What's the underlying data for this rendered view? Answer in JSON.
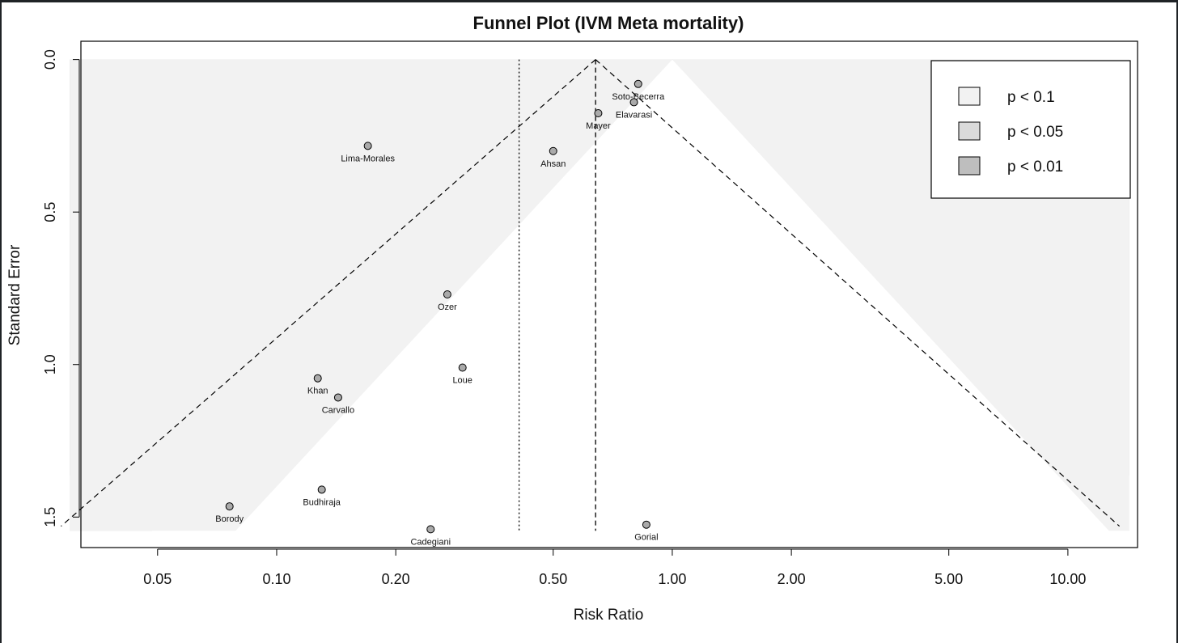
{
  "chart_data": {
    "type": "scatter",
    "title": "Funnel Plot (IVM Meta mortality)",
    "xlabel": "Risk Ratio",
    "ylabel": "Standard Error",
    "x_scale": "log",
    "xlim": [
      0.032,
      15.0
    ],
    "ylim": [
      1.6,
      -0.06
    ],
    "x_ticks": [
      0.05,
      0.1,
      0.2,
      0.5,
      1.0,
      2.0,
      5.0,
      10.0
    ],
    "x_tick_labels": [
      "0.05",
      "0.10",
      "0.20",
      "0.50",
      "1.00",
      "2.00",
      "5.00",
      "10.00"
    ],
    "y_ticks": [
      0.0,
      0.5,
      1.0,
      1.5
    ],
    "y_tick_labels": [
      "0.0",
      "0.5",
      "1.0",
      "1.5"
    ],
    "contour_reference": 1.0,
    "contour_se_max": 1.545,
    "contour_x_range": [
      0.03,
      14.3
    ],
    "pooled_estimate": 0.64,
    "null_line_dotted": 0.41,
    "funnel_x_range": [
      0.0285,
      13.5
    ],
    "funnel_se_max": 1.53,
    "contours": [
      {
        "label": "p < 0.1",
        "z": 1.645,
        "color": "#f2f2f2"
      },
      {
        "label": "p < 0.05",
        "z": 1.96,
        "color": "#dadada"
      },
      {
        "label": "p < 0.01",
        "z": 2.576,
        "color": "#bebebe"
      }
    ],
    "legend_position": "top-right",
    "studies": [
      {
        "name": "Soto-Becerra",
        "rr": 0.82,
        "se": 0.08
      },
      {
        "name": "Elavarasi",
        "rr": 0.8,
        "se": 0.14
      },
      {
        "name": "Mayer",
        "rr": 0.65,
        "se": 0.176
      },
      {
        "name": "Ahsan",
        "rr": 0.5,
        "se": 0.3
      },
      {
        "name": "Lima-Morales",
        "rr": 0.17,
        "se": 0.283
      },
      {
        "name": "Ozer",
        "rr": 0.27,
        "se": 0.77
      },
      {
        "name": "Loue",
        "rr": 0.295,
        "se": 1.01
      },
      {
        "name": "Khan",
        "rr": 0.127,
        "se": 1.045
      },
      {
        "name": "Carvallo",
        "rr": 0.143,
        "se": 1.108
      },
      {
        "name": "Budhiraja",
        "rr": 0.13,
        "se": 1.41
      },
      {
        "name": "Borody",
        "rr": 0.076,
        "se": 1.465
      },
      {
        "name": "Cadegiani",
        "rr": 0.245,
        "se": 1.54
      },
      {
        "name": "Gorial",
        "rr": 0.86,
        "se": 1.525
      }
    ],
    "marker_color": "#aaaaaa"
  }
}
